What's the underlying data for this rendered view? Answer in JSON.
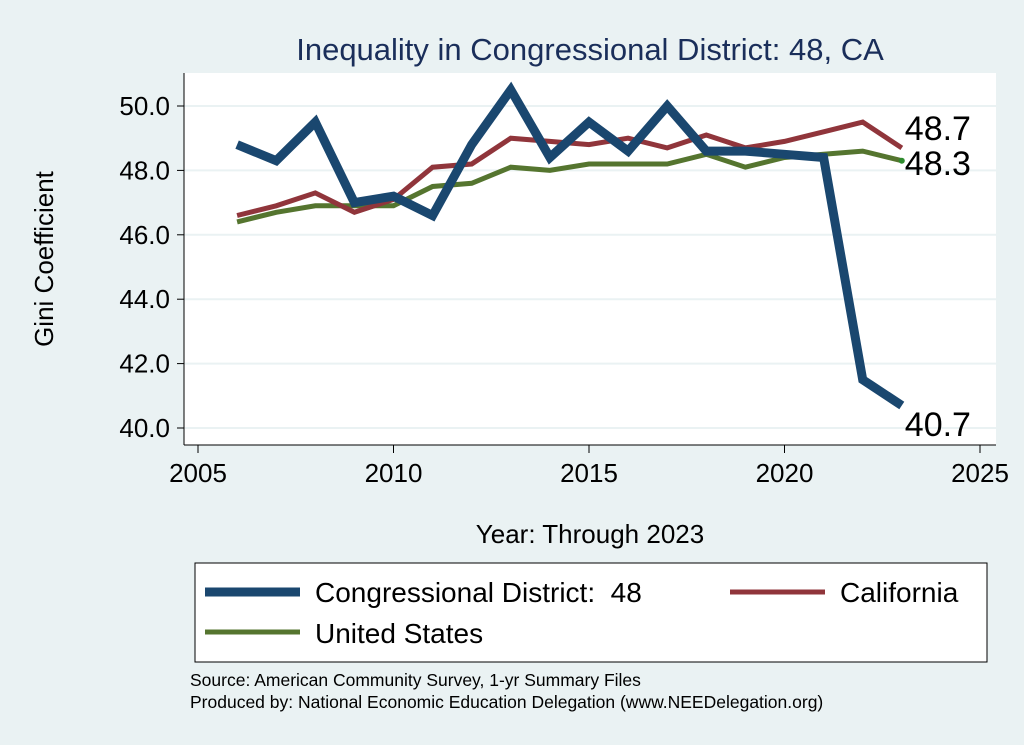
{
  "chart_data": {
    "type": "line",
    "title": "Inequality in Congressional District:  48, CA",
    "xlabel": "Year: Through 2023",
    "ylabel": "Gini Coefficient",
    "xlim": [
      2005,
      2025
    ],
    "ylim": [
      39.5,
      51.0
    ],
    "xticks": [
      "2005",
      "2010",
      "2015",
      "2020",
      "2025"
    ],
    "yticks": [
      "40.0",
      "42.0",
      "44.0",
      "46.0",
      "48.0",
      "50.0"
    ],
    "grid": true,
    "legend_position": "bottom",
    "series": [
      {
        "name": "Congressional District:  48",
        "color": "#1a476f",
        "x": [
          2006,
          2007,
          2008,
          2009,
          2010,
          2011,
          2012,
          2013,
          2014,
          2015,
          2016,
          2017,
          2018,
          2019,
          2020,
          2021,
          2022,
          2023
        ],
        "y": [
          48.8,
          48.3,
          49.5,
          47.0,
          47.2,
          46.6,
          48.8,
          50.5,
          48.4,
          49.5,
          48.6,
          50.0,
          48.6,
          48.6,
          48.5,
          48.4,
          41.5,
          40.7
        ],
        "end_label": "40.7"
      },
      {
        "name": "California",
        "color": "#90353b",
        "x": [
          2006,
          2007,
          2008,
          2009,
          2010,
          2011,
          2012,
          2013,
          2014,
          2015,
          2016,
          2017,
          2018,
          2019,
          2020,
          2021,
          2022,
          2023
        ],
        "y": [
          46.6,
          46.9,
          47.3,
          46.7,
          47.1,
          48.1,
          48.2,
          49.0,
          48.9,
          48.8,
          49.0,
          48.7,
          49.1,
          48.7,
          48.9,
          49.2,
          49.5,
          48.7
        ],
        "end_label": "48.7"
      },
      {
        "name": "United States",
        "color": "#55752f",
        "x": [
          2006,
          2007,
          2008,
          2009,
          2010,
          2011,
          2012,
          2013,
          2014,
          2015,
          2016,
          2017,
          2018,
          2019,
          2020,
          2021,
          2022,
          2023
        ],
        "y": [
          46.4,
          46.7,
          46.9,
          46.9,
          46.9,
          47.5,
          47.6,
          48.1,
          48.0,
          48.2,
          48.2,
          48.2,
          48.5,
          48.1,
          48.4,
          48.5,
          48.6,
          48.3
        ],
        "end_label": "48.3"
      }
    ],
    "source": "Source: American Community Survey, 1-yr Summary Files",
    "produced_by": "Produced by: National Economic Education Delegation (www.NEEDelegation.org)"
  }
}
